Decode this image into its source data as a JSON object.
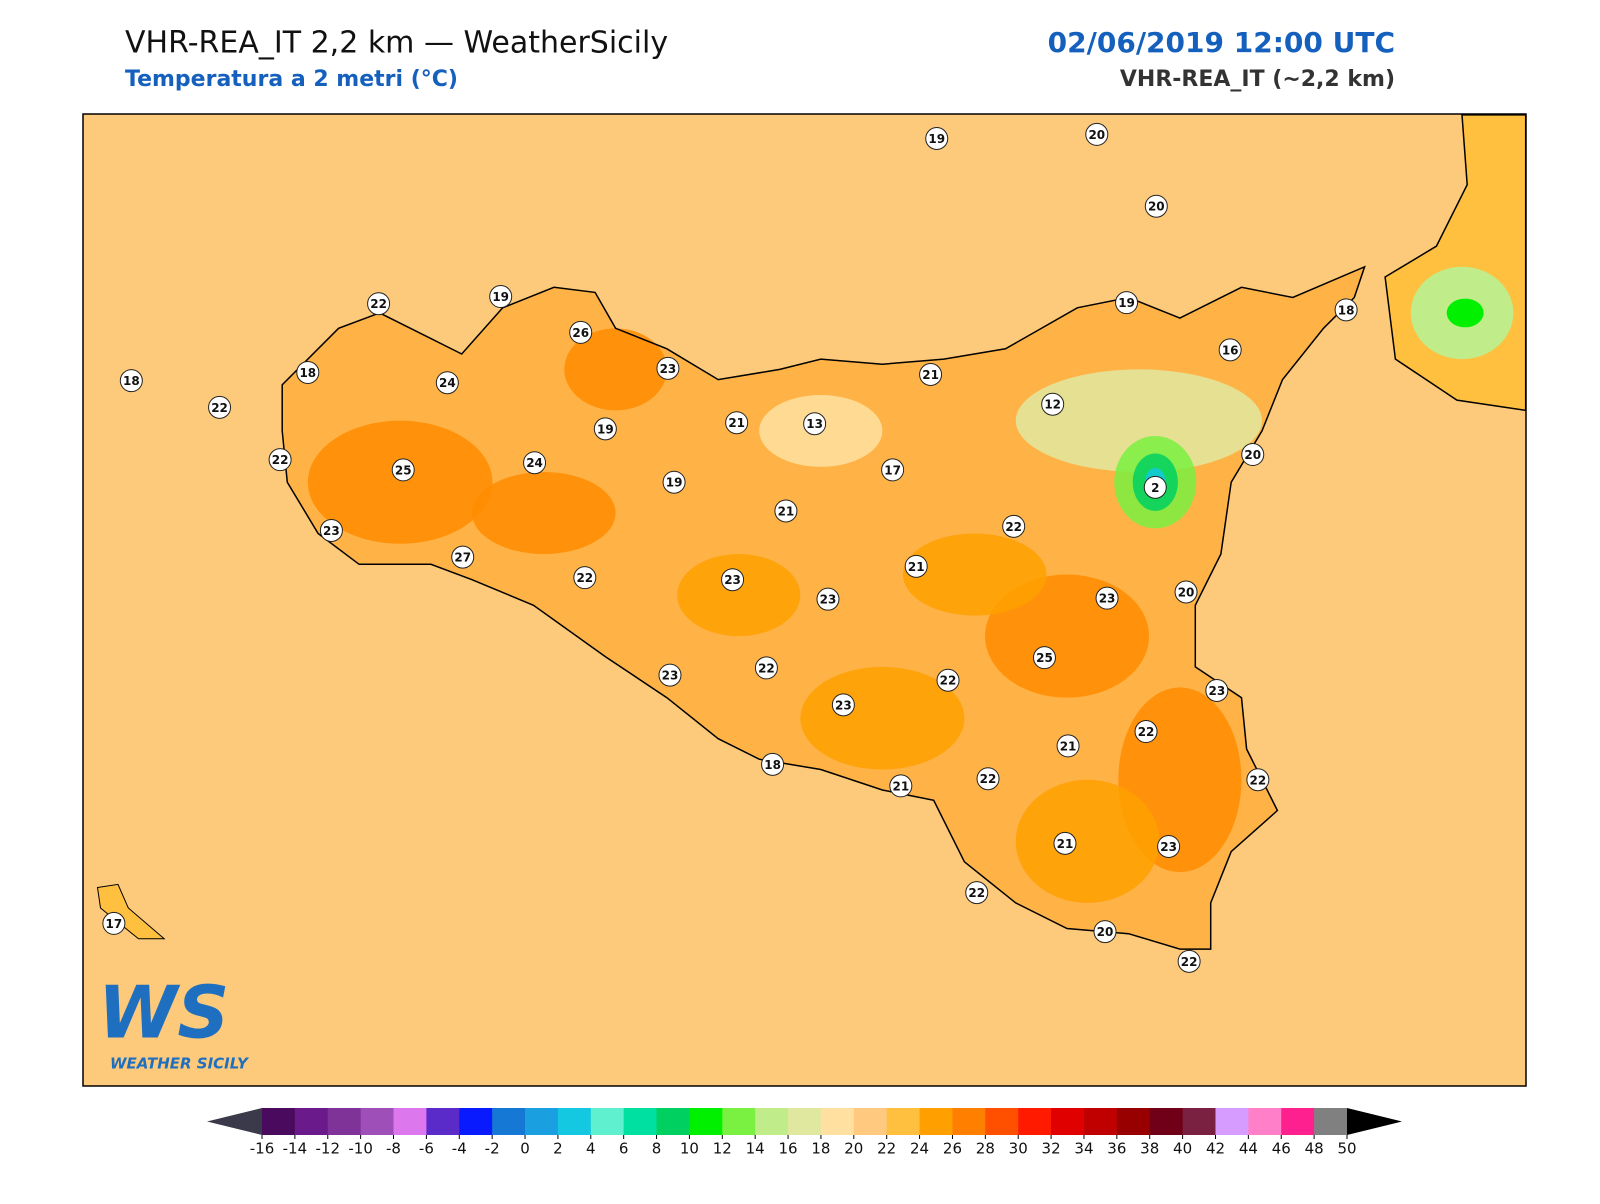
{
  "header": {
    "title": "VHR-REA_IT 2,2 km — WeatherSicily",
    "subtitle": "Temperatura a 2 metri (°C)",
    "date": "02/06/2019 12:00 UTC",
    "model": "VHR-REA_IT (~2,2 km)"
  },
  "stations": [
    19,
    20,
    20,
    22,
    19,
    26,
    19,
    18,
    23,
    16,
    18,
    18,
    24,
    22,
    21,
    12,
    21,
    13,
    19,
    22,
    25,
    24,
    17,
    20,
    19,
    2,
    21,
    23,
    22,
    27,
    21,
    22,
    23,
    23,
    23,
    20,
    25,
    23,
    22,
    22,
    23,
    23,
    22,
    21,
    18,
    22,
    21,
    22,
    21,
    23,
    22,
    17,
    20,
    22
  ],
  "colorbar": {
    "ticks": [
      -16,
      -14,
      -12,
      -10,
      -8,
      -6,
      -4,
      -2,
      0,
      2,
      4,
      6,
      8,
      10,
      12,
      14,
      16,
      18,
      20,
      22,
      24,
      26,
      28,
      30,
      32,
      34,
      36,
      38,
      40,
      42,
      44,
      46,
      48,
      50
    ],
    "colors": [
      "#4a0a5e",
      "#6a1a8a",
      "#7f3399",
      "#9e4fb8",
      "#dd77ee",
      "#5a2bc9",
      "#0a1aff",
      "#1478d4",
      "#1aa0e0",
      "#13c8e0",
      "#5ff0d0",
      "#00e0a0",
      "#00d060",
      "#00f000",
      "#7af040",
      "#c0ec8a",
      "#e0e8a0",
      "#ffe0a0",
      "#ffca80",
      "#ffc040",
      "#ffa000",
      "#ff7f00",
      "#ff5000",
      "#ff1a00",
      "#e00000",
      "#c00000",
      "#980000",
      "#700018",
      "#7a2040",
      "#d69cff",
      "#ff80c8",
      "#ff2090",
      "#808080"
    ],
    "extend_colors": [
      "#3a3a4a",
      "#000000"
    ]
  },
  "logo": {
    "mark": "WS",
    "text": "WEATHER SICILY"
  }
}
